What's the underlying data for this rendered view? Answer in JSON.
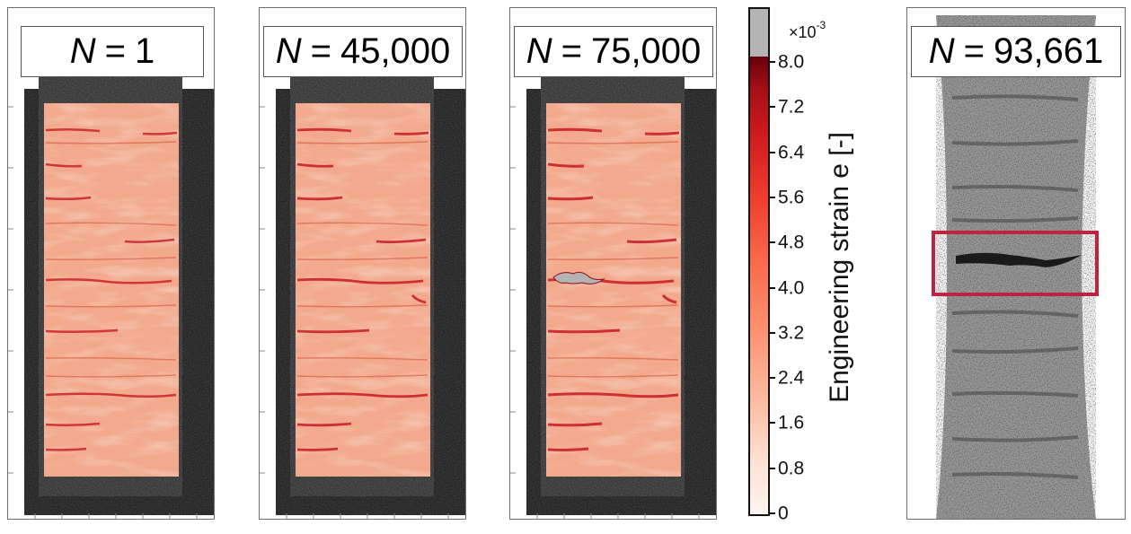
{
  "panels": [
    {
      "title_var": "N",
      "title_eq": "=",
      "title_value": "1"
    },
    {
      "title_var": "N",
      "title_eq": "=",
      "title_value": "45,000"
    },
    {
      "title_var": "N",
      "title_eq": "=",
      "title_value": "75,000"
    },
    {
      "title_var": "N",
      "title_eq": "=",
      "title_value": "93,661"
    }
  ],
  "colorbar": {
    "title": "Engineering strain e [-]",
    "exponent_base": "×10",
    "exponent_power": "-3",
    "ticks": [
      "8.0",
      "7.2",
      "6.4",
      "5.6",
      "4.8",
      "4.0",
      "3.2",
      "2.4",
      "1.6",
      "0.8",
      "0"
    ],
    "range": [
      0,
      8.0
    ],
    "overflow_color": "#b4b4b4",
    "colormap": "Reds"
  },
  "highlight_color": "#c0223f"
}
